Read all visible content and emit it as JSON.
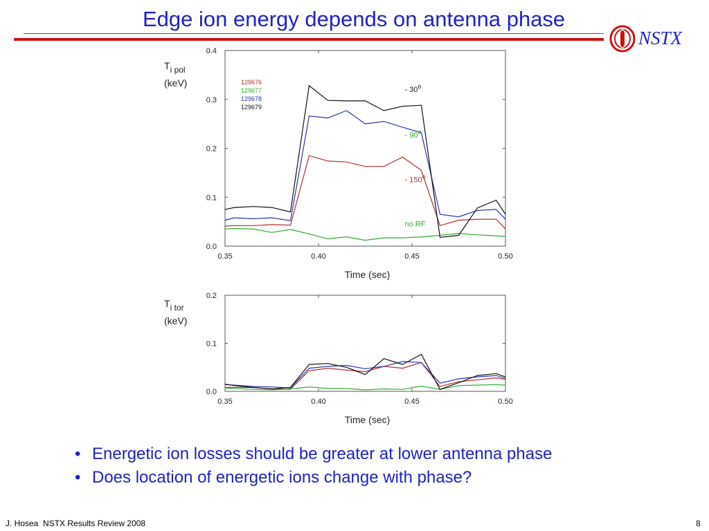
{
  "slide": {
    "title": "Edge ion energy depends on antenna phase",
    "logo_text": "NSTX",
    "footer_left": "J. Hosea  NSTX Results Review 2008",
    "footer_right": "8",
    "bullets": [
      "Energetic ion losses should be greater at lower antenna phase",
      "Does location of energetic ions change with phase?"
    ],
    "colors": {
      "title": "#1f22c6",
      "rule": "#cc1111"
    }
  },
  "chart_data": [
    {
      "type": "line",
      "ylabel_main": "T",
      "ylabel_sub": "i pol",
      "ylabel_unit": "(keV)",
      "xlabel": "Time (sec)",
      "xlim": [
        0.35,
        0.5
      ],
      "ylim": [
        0,
        0.4
      ],
      "xticks": [
        "0.35",
        "0.40",
        "0.45",
        "0.50"
      ],
      "yticks": [
        "0.0",
        "0.1",
        "0.2",
        "0.3",
        "0.4"
      ],
      "x": [
        0.35,
        0.355,
        0.365,
        0.375,
        0.385,
        0.395,
        0.405,
        0.415,
        0.425,
        0.435,
        0.445,
        0.455,
        0.465,
        0.475,
        0.485,
        0.495,
        0.5
      ],
      "series": [
        {
          "name": "129676",
          "color": "#b03030",
          "values": [
            0.041,
            0.042,
            0.042,
            0.044,
            0.043,
            0.185,
            0.174,
            0.172,
            0.163,
            0.163,
            0.182,
            0.155,
            0.042,
            0.053,
            0.055,
            0.055,
            0.035
          ]
        },
        {
          "name": "129677",
          "color": "#2faa2f",
          "values": [
            0.035,
            0.036,
            0.035,
            0.028,
            0.034,
            0.025,
            0.015,
            0.019,
            0.012,
            0.017,
            0.017,
            0.019,
            0.022,
            0.026,
            0.023,
            0.021,
            0.02
          ]
        },
        {
          "name": "129678",
          "color": "#2a35a8",
          "values": [
            0.053,
            0.058,
            0.056,
            0.058,
            0.052,
            0.266,
            0.262,
            0.277,
            0.25,
            0.255,
            0.243,
            0.232,
            0.065,
            0.06,
            0.073,
            0.075,
            0.055
          ]
        },
        {
          "name": "129679",
          "color": "#111111",
          "values": [
            0.075,
            0.079,
            0.081,
            0.079,
            0.07,
            0.328,
            0.298,
            0.297,
            0.297,
            0.277,
            0.286,
            0.288,
            0.018,
            0.022,
            0.078,
            0.094,
            0.065
          ]
        }
      ],
      "annotations": [
        {
          "text": "- 30",
          "sup": "o",
          "color": "#111111",
          "x": 0.445,
          "y": 0.315
        },
        {
          "text": "- 90",
          "sup": "o",
          "color": "#2faa2f",
          "x": 0.445,
          "y": 0.222
        },
        {
          "text": "- 150",
          "sup": "o",
          "color": "#b03030",
          "x": 0.445,
          "y": 0.131
        },
        {
          "text": "no RF",
          "color": "#2faa2f",
          "x": 0.445,
          "y": 0.04
        }
      ]
    },
    {
      "type": "line",
      "ylabel_main": "T",
      "ylabel_sub": "i tor",
      "ylabel_unit": "(keV)",
      "xlabel": "Time (sec)",
      "xlim": [
        0.35,
        0.5
      ],
      "ylim": [
        0,
        0.2
      ],
      "xticks": [
        "0.35",
        "0.40",
        "0.45",
        "0.50"
      ],
      "yticks": [
        "0.0",
        "0.1",
        "0.2"
      ],
      "x": [
        0.35,
        0.355,
        0.365,
        0.375,
        0.385,
        0.395,
        0.405,
        0.415,
        0.425,
        0.435,
        0.445,
        0.455,
        0.465,
        0.475,
        0.485,
        0.495,
        0.5
      ],
      "series": [
        {
          "name": "129676",
          "color": "#b03030",
          "values": [
            0.008,
            0.008,
            0.008,
            0.005,
            0.004,
            0.043,
            0.048,
            0.044,
            0.041,
            0.052,
            0.048,
            0.06,
            0.01,
            0.02,
            0.024,
            0.028,
            0.025
          ]
        },
        {
          "name": "129677",
          "color": "#2faa2f",
          "values": [
            0.007,
            0.006,
            0.004,
            0.003,
            0.005,
            0.009,
            0.006,
            0.006,
            0.003,
            0.005,
            0.004,
            0.011,
            0.004,
            0.012,
            0.013,
            0.014,
            0.013
          ]
        },
        {
          "name": "129678",
          "color": "#2a35a8",
          "values": [
            0.014,
            0.013,
            0.01,
            0.009,
            0.007,
            0.048,
            0.052,
            0.054,
            0.047,
            0.052,
            0.062,
            0.06,
            0.017,
            0.026,
            0.03,
            0.033,
            0.027
          ]
        },
        {
          "name": "129679",
          "color": "#111111",
          "values": [
            0.015,
            0.012,
            0.008,
            0.005,
            0.008,
            0.056,
            0.058,
            0.05,
            0.035,
            0.068,
            0.056,
            0.077,
            0.004,
            0.018,
            0.033,
            0.037,
            0.03
          ]
        }
      ]
    }
  ]
}
